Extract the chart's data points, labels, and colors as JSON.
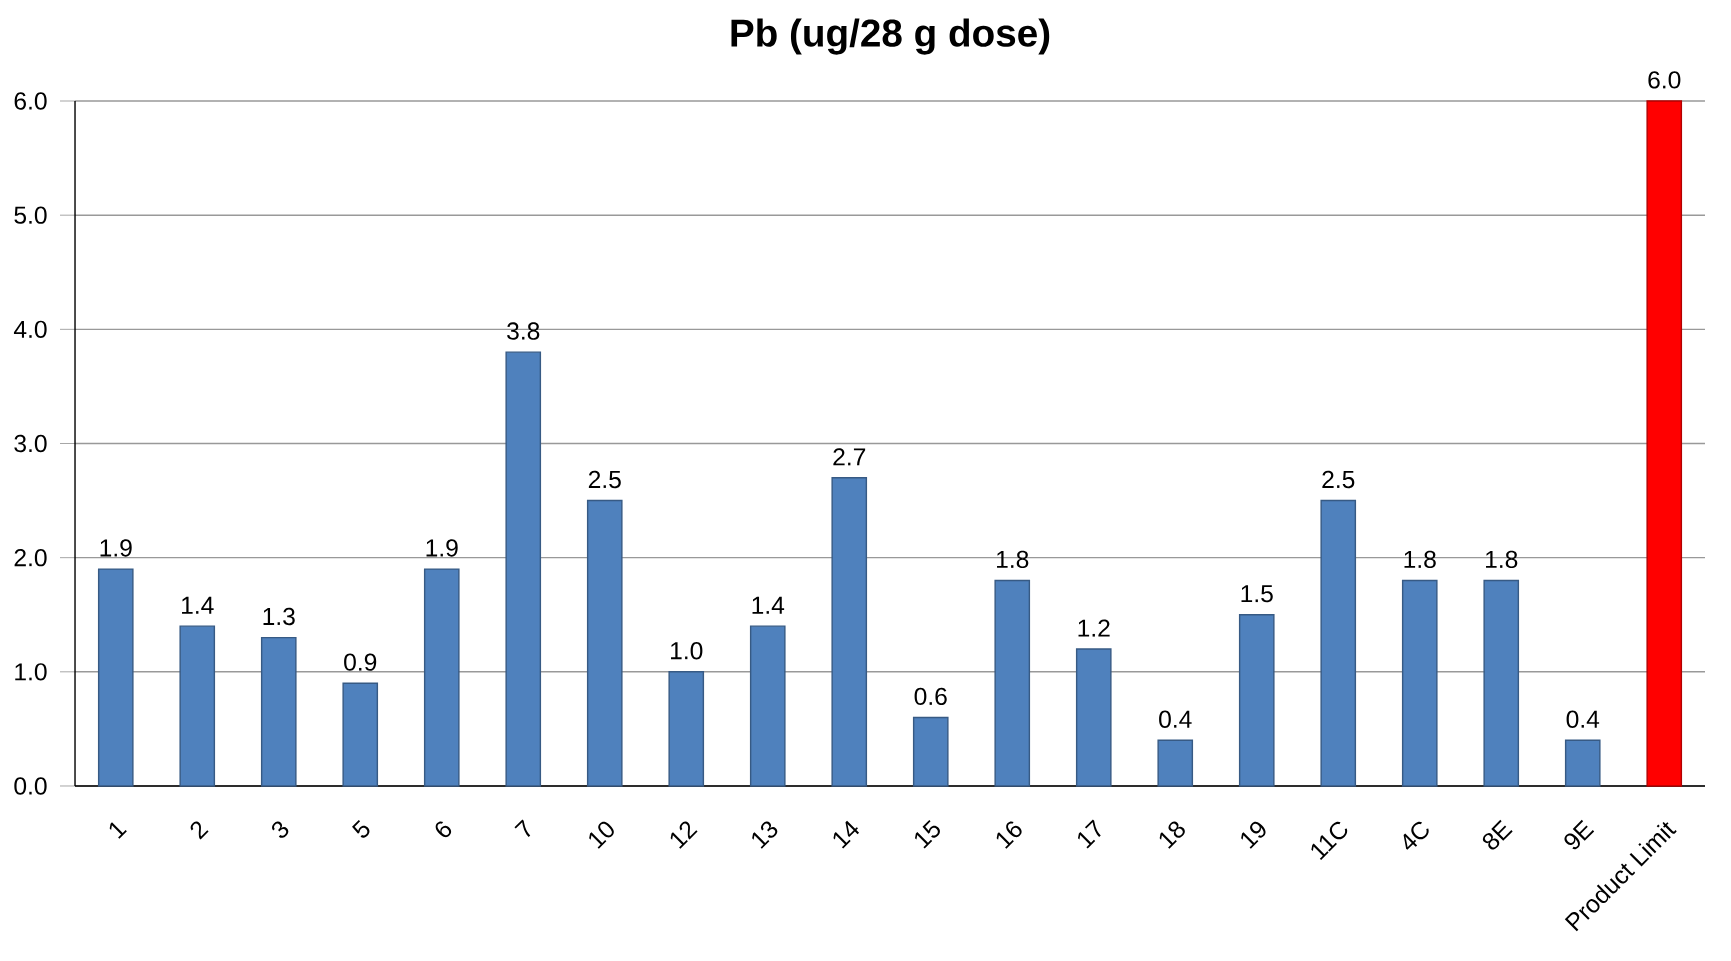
{
  "chart_data": {
    "type": "bar",
    "title": "Pb (ug/28 g dose)",
    "categories": [
      "1",
      "2",
      "3",
      "5",
      "6",
      "7",
      "10",
      "12",
      "13",
      "14",
      "15",
      "16",
      "17",
      "18",
      "19",
      "11C",
      "4C",
      "8E",
      "9E",
      "Product Limit"
    ],
    "values": [
      1.9,
      1.4,
      1.3,
      0.9,
      1.9,
      3.8,
      2.5,
      1.0,
      1.4,
      2.7,
      0.6,
      1.8,
      1.2,
      0.4,
      1.5,
      2.5,
      1.8,
      1.8,
      0.4,
      6.0
    ],
    "value_labels": [
      "1.9",
      "1.4",
      "1.3",
      "0.9",
      "1.9",
      "3.8",
      "2.5",
      "1.0",
      "1.4",
      "2.7",
      "0.6",
      "1.8",
      "1.2",
      "0.4",
      "1.5",
      "2.5",
      "1.8",
      "1.8",
      "0.4",
      "6.0"
    ],
    "colors": [
      "#4f81bd",
      "#4f81bd",
      "#4f81bd",
      "#4f81bd",
      "#4f81bd",
      "#4f81bd",
      "#4f81bd",
      "#4f81bd",
      "#4f81bd",
      "#4f81bd",
      "#4f81bd",
      "#4f81bd",
      "#4f81bd",
      "#4f81bd",
      "#4f81bd",
      "#4f81bd",
      "#4f81bd",
      "#4f81bd",
      "#4f81bd",
      "#ff0000"
    ],
    "ylim": [
      0,
      6
    ],
    "yticks": [
      {
        "value": 0,
        "label": "0.0"
      },
      {
        "value": 1,
        "label": "1.0"
      },
      {
        "value": 2,
        "label": "2.0"
      },
      {
        "value": 3,
        "label": "3.0"
      },
      {
        "value": 4,
        "label": "4.0"
      },
      {
        "value": 5,
        "label": "5.0"
      },
      {
        "value": 6,
        "label": "6.0"
      }
    ],
    "grid": "y"
  }
}
